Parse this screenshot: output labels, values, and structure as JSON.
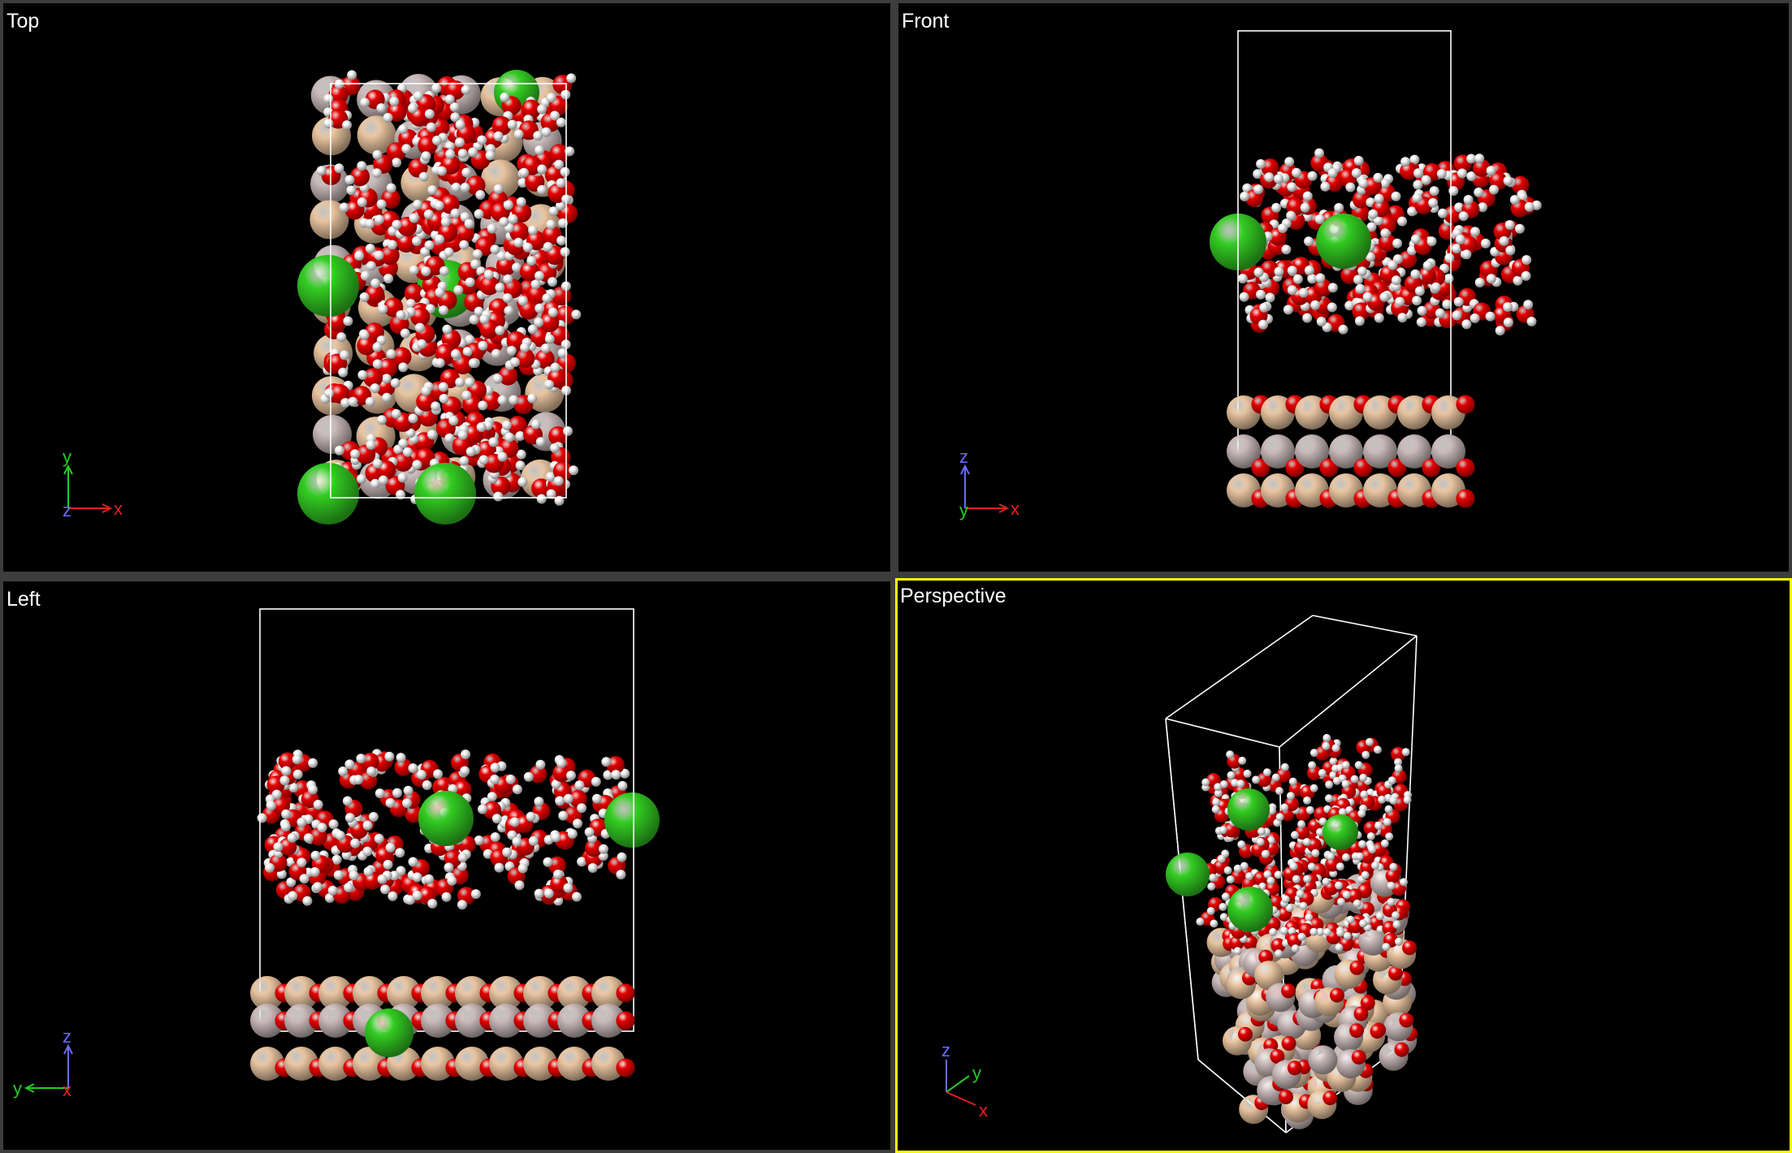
{
  "viewports": {
    "top": {
      "label": "Top",
      "axes": {
        "horizontal": "x",
        "vertical": "y",
        "depth": "z"
      }
    },
    "front": {
      "label": "Front",
      "axes": {
        "horizontal": "x",
        "vertical": "z",
        "depth": "y"
      }
    },
    "left": {
      "label": "Left",
      "axes": {
        "horizontal": "y",
        "vertical": "z",
        "depth": "x"
      }
    },
    "perspective": {
      "label": "Perspective",
      "active": true,
      "axes": {
        "x": "x",
        "y": "y",
        "z": "z"
      }
    }
  },
  "colors": {
    "oxygen": "#e60000",
    "hydrogen": "#f2f2f2",
    "chloride": "#33cc22",
    "substrate_light": "#e8c4a0",
    "substrate_gray": "#c8b8b8",
    "cell": "#ffffff",
    "active_border": "#ffff00",
    "axis_x": "#e02020",
    "axis_y": "#22cc22",
    "axis_z": "#6a6aff"
  }
}
